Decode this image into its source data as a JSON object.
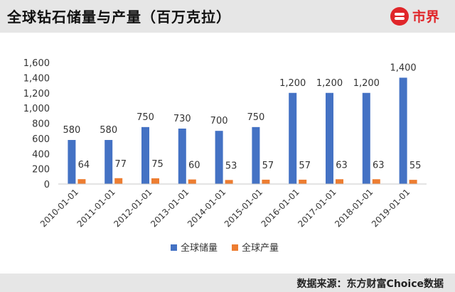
{
  "header": {
    "title": "全球钻石储量与产量（百万克拉）",
    "logo_text": "市界"
  },
  "footer": {
    "source": "数据来源：东方财富Choice数据"
  },
  "chart_data": {
    "type": "bar",
    "title": "全球钻石储量与产量（百万克拉）",
    "categories": [
      "2010-01-01",
      "2011-01-01",
      "2012-01-01",
      "2013-01-01",
      "2014-01-01",
      "2015-01-01",
      "2016-01-01",
      "2017-01-01",
      "2018-01-01",
      "2019-01-01"
    ],
    "series": [
      {
        "name": "全球储量",
        "color": "#4472c4",
        "values": [
          580,
          580,
          750,
          730,
          700,
          750,
          1200,
          1200,
          1200,
          1400
        ],
        "labels": [
          "580",
          "580",
          "750",
          "730",
          "700",
          "750",
          "1,200",
          "1,200",
          "1,200",
          "1,400"
        ]
      },
      {
        "name": "全球产量",
        "color": "#ed7d31",
        "values": [
          64,
          77,
          75,
          60,
          53,
          57,
          57,
          63,
          63,
          55
        ],
        "labels": [
          "64",
          "77",
          "75",
          "60",
          "53",
          "57",
          "57",
          "63",
          "63",
          "55"
        ]
      }
    ],
    "yticks": [
      "0",
      "200",
      "400",
      "600",
      "800",
      "1,000",
      "1,200",
      "1,400",
      "1,600"
    ],
    "ylim": [
      0,
      1600
    ],
    "grid": false,
    "legend": "bottom"
  }
}
